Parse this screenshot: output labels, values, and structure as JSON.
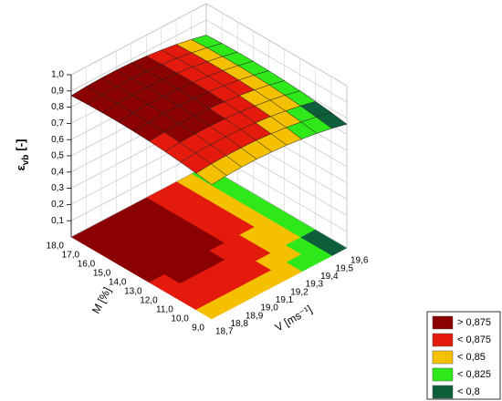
{
  "chart_data": {
    "type": "surface3d",
    "x_label": "M [%]",
    "y_label": "V [ms⁻¹]",
    "z_label": {
      "symbol": "ε",
      "subscript": "vb",
      "unit": "[-]"
    },
    "xlim": [
      9,
      18
    ],
    "ylim": [
      18.7,
      19.6
    ],
    "zlim": [
      0,
      1
    ],
    "xticks": [
      {
        "value": 9,
        "label": "9,0"
      },
      {
        "value": 10,
        "label": "10,0"
      },
      {
        "value": 11,
        "label": "11,0"
      },
      {
        "value": 12,
        "label": "12,0"
      },
      {
        "value": 13,
        "label": "13,0"
      },
      {
        "value": 14,
        "label": "14,0"
      },
      {
        "value": 15,
        "label": "15,0"
      },
      {
        "value": 16,
        "label": "16,0"
      },
      {
        "value": 17,
        "label": "17,0"
      },
      {
        "value": 18,
        "label": "18,0"
      }
    ],
    "yticks": [
      {
        "value": 18.7,
        "label": "18,7"
      },
      {
        "value": 18.8,
        "label": "18,8"
      },
      {
        "value": 18.9,
        "label": "18,9"
      },
      {
        "value": 19,
        "label": "19,0"
      },
      {
        "value": 19.1,
        "label": "19,1"
      },
      {
        "value": 19.2,
        "label": "19,2"
      },
      {
        "value": 19.3,
        "label": "19,3"
      },
      {
        "value": 19.4,
        "label": "19,4"
      },
      {
        "value": 19.5,
        "label": "19,5"
      },
      {
        "value": 19.6,
        "label": "19,6"
      }
    ],
    "zticks": [
      {
        "value": 0.1,
        "label": "0,1"
      },
      {
        "value": 0.2,
        "label": "0,2"
      },
      {
        "value": 0.3,
        "label": "0,3"
      },
      {
        "value": 0.4,
        "label": "0,4"
      },
      {
        "value": 0.5,
        "label": "0,5"
      },
      {
        "value": 0.6,
        "label": "0,6"
      },
      {
        "value": 0.7,
        "label": "0,7"
      },
      {
        "value": 0.8,
        "label": "0,8"
      },
      {
        "value": 0.9,
        "label": "0,9"
      },
      {
        "value": 1,
        "label": "1,0"
      }
    ],
    "x": [
      9,
      10,
      11,
      12,
      13,
      14,
      15,
      16,
      17,
      18
    ],
    "y": [
      18.7,
      18.8,
      18.9,
      19.0,
      19.1,
      19.2,
      19.3,
      19.4,
      19.5,
      19.6
    ],
    "z": [
      [
        0.828,
        0.835,
        0.839,
        0.839,
        0.835,
        0.828,
        0.817,
        0.803,
        0.785,
        0.763
      ],
      [
        0.842,
        0.85,
        0.853,
        0.853,
        0.85,
        0.842,
        0.832,
        0.817,
        0.799,
        0.778
      ],
      [
        0.854,
        0.862,
        0.865,
        0.865,
        0.862,
        0.854,
        0.844,
        0.829,
        0.811,
        0.79
      ],
      [
        0.864,
        0.871,
        0.875,
        0.875,
        0.871,
        0.864,
        0.853,
        0.839,
        0.821,
        0.799
      ],
      [
        0.871,
        0.878,
        0.882,
        0.882,
        0.878,
        0.871,
        0.86,
        0.846,
        0.828,
        0.806
      ],
      [
        0.876,
        0.883,
        0.887,
        0.887,
        0.883,
        0.876,
        0.865,
        0.851,
        0.833,
        0.811
      ],
      [
        0.878,
        0.886,
        0.889,
        0.889,
        0.886,
        0.878,
        0.868,
        0.853,
        0.835,
        0.814
      ],
      [
        0.878,
        0.886,
        0.889,
        0.889,
        0.886,
        0.878,
        0.868,
        0.853,
        0.835,
        0.814
      ],
      [
        0.876,
        0.883,
        0.887,
        0.887,
        0.883,
        0.876,
        0.865,
        0.851,
        0.833,
        0.811
      ],
      [
        0.871,
        0.878,
        0.882,
        0.882,
        0.878,
        0.871,
        0.86,
        0.846,
        0.828,
        0.806
      ]
    ],
    "legend": [
      {
        "label": "> 0,875",
        "value": 0.875,
        "color": "#8b0000"
      },
      {
        "label": "< 0,875",
        "value": 0.875,
        "color": "#e41a0c"
      },
      {
        "label": "< 0,85",
        "value": 0.85,
        "color": "#f5c000"
      },
      {
        "label": "< 0,825",
        "value": 0.825,
        "color": "#2ee81a"
      },
      {
        "label": "< 0,8",
        "value": 0.8,
        "color": "#0d5e3a"
      }
    ]
  }
}
